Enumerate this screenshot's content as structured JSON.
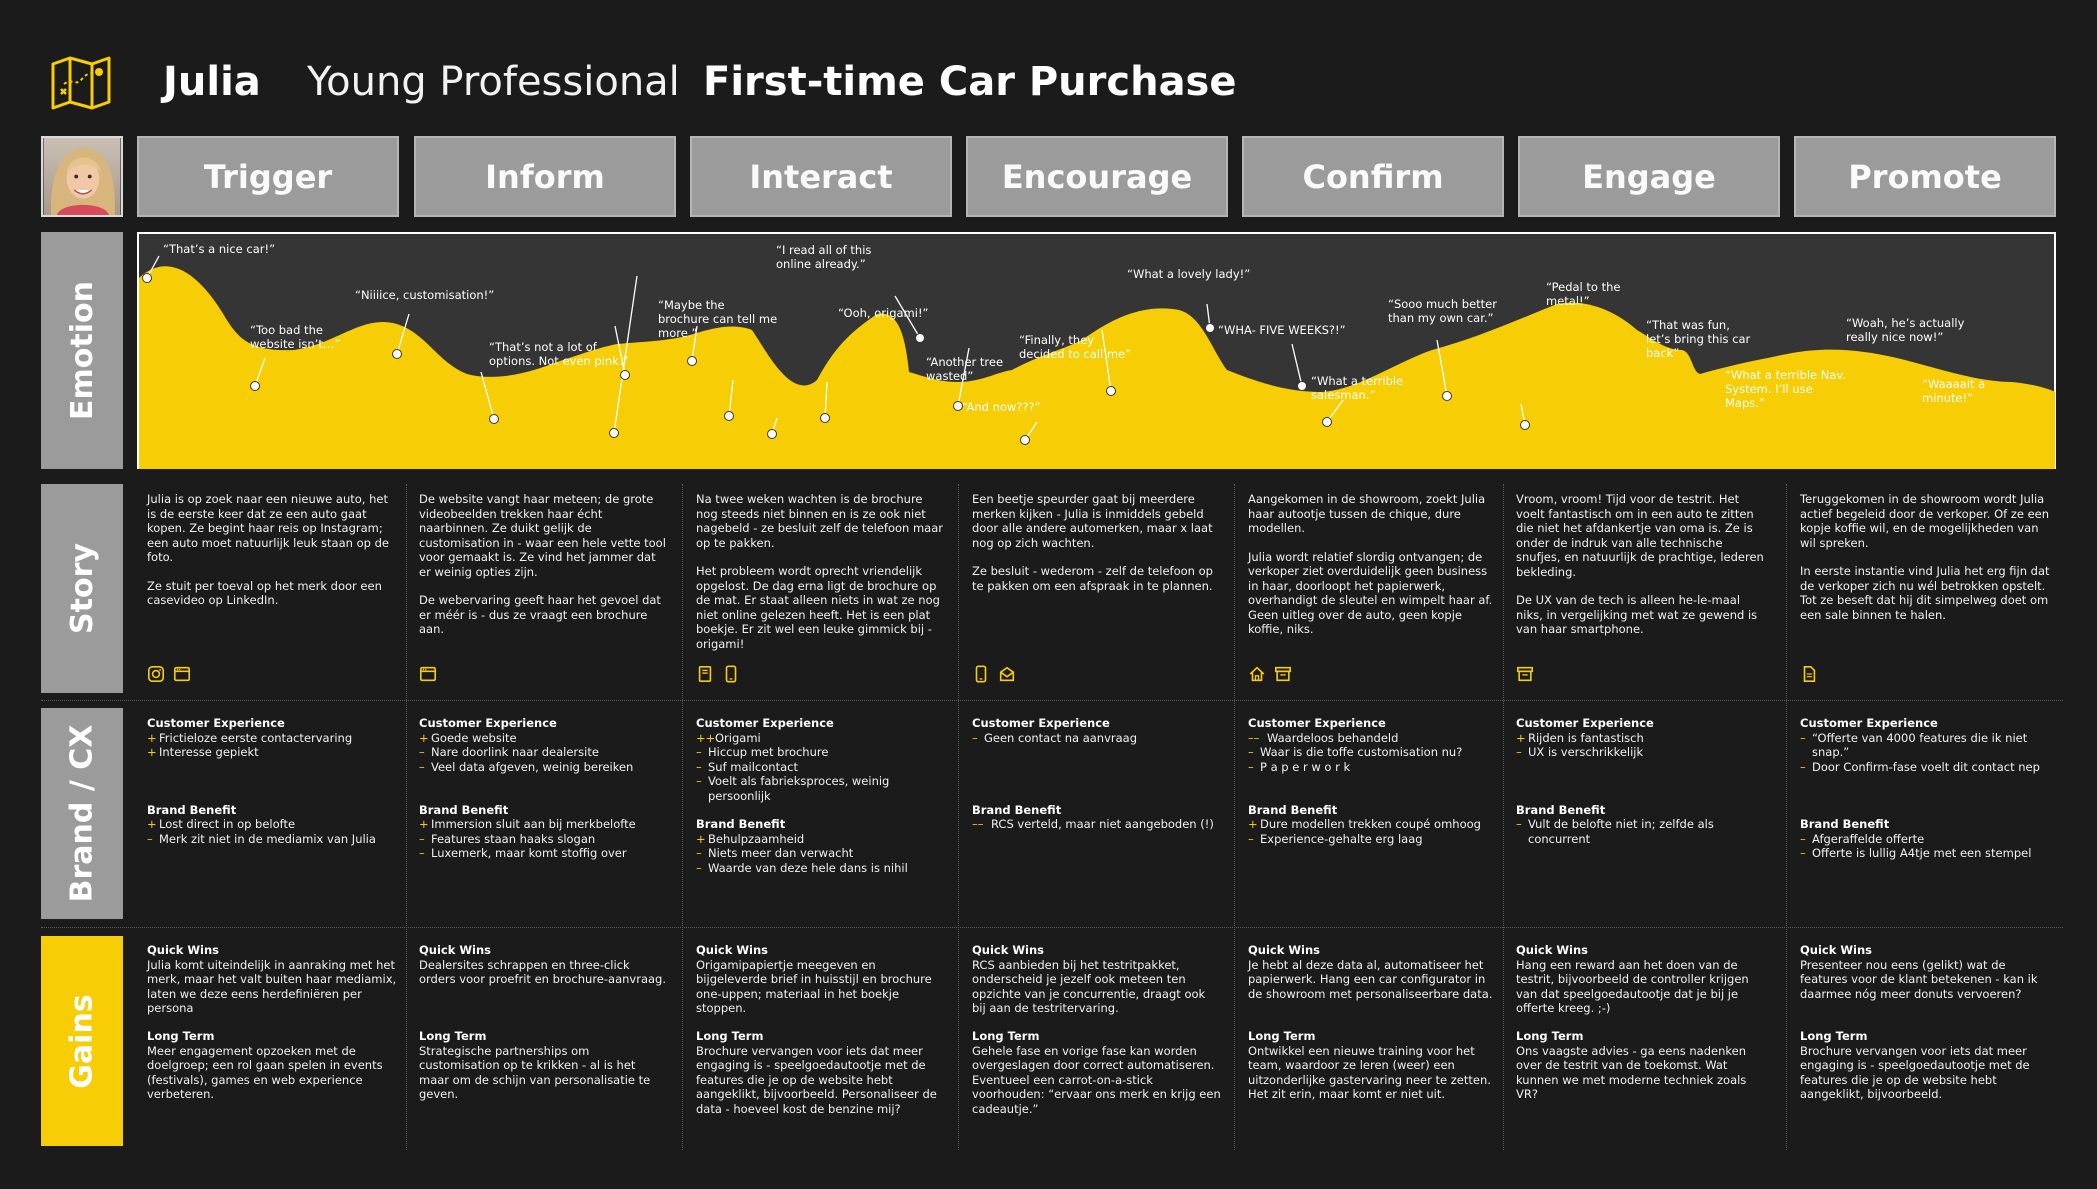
{
  "header": {
    "name": "Julia",
    "role": "Young Professional",
    "title": "First-time Car Purchase"
  },
  "phases": [
    "Trigger",
    "Inform",
    "Interact",
    "Encourage",
    "Confirm",
    "Engage",
    "Promote"
  ],
  "row_labels": {
    "emotion": "Emotion",
    "story": "Story",
    "brand": "Brand / CX",
    "gains": "Gains"
  },
  "colors": {
    "accent": "#f7cd05",
    "background": "#1b1b1b",
    "phase_box": "#9b9b9b",
    "chart_bg": "#353535"
  },
  "emotion_quotes": [
    {
      "text": "“That’s a nice car!”"
    },
    {
      "text": "“Too bad the website isn’t…”"
    },
    {
      "text": "“Niiiice, customisation!”"
    },
    {
      "text": "“That’s not a lot of options. Not even pink.”"
    },
    {
      "text": "“Maybe the brochure can tell me more.”"
    },
    {
      "text": "“I read all of this online already.”"
    },
    {
      "text": "“Ooh, origami!”"
    },
    {
      "text": "“Another tree wasted”"
    },
    {
      "text": "“And now???”"
    },
    {
      "text": "“Finally, they decided to call me”"
    },
    {
      "text": "“What a lovely lady!”"
    },
    {
      "text": "“WHA- FIVE WEEKS?!”"
    },
    {
      "text": "“What a terrible salesman.”"
    },
    {
      "text": "“Sooo much better than my own car.”"
    },
    {
      "text": "“Pedal to the metal!”"
    },
    {
      "text": "“That was fun, let’s bring this car back”"
    },
    {
      "text": "“What a terrible Nav. System. I’ll use Maps.”"
    },
    {
      "text": "“Woah, he’s actually really nice now!”"
    },
    {
      "text": "“Waaaait a minute!”"
    }
  ],
  "columns": [
    {
      "story": [
        "Julia is op zoek naar een nieuwe auto, het is de eerste keer dat ze een auto gaat kopen. Ze begint haar reis op Instagram; een auto moet natuurlijk leuk staan op de foto.",
        "Ze stuit per toeval op het merk door een casevideo op LinkedIn."
      ],
      "channels": [
        "instagram-icon",
        "website-icon"
      ],
      "cx_heading": "Customer Experience",
      "cx": [
        {
          "m": "+",
          "t": "Frictieloze eerste contactervaring"
        },
        {
          "m": "+",
          "t": "Interesse gepiekt"
        }
      ],
      "bb_heading": "Brand Benefit",
      "bb": [
        {
          "m": "+",
          "t": "Lost direct in op belofte"
        },
        {
          "m": "–",
          "t": "Merk zit niet in de mediamix van Julia"
        }
      ],
      "qw_heading": "Quick Wins",
      "qw": "Julia komt uiteindelijk in aanraking met het merk, maar het valt buiten haar mediamix, laten we deze eens herdefiniëren per persona",
      "lt_heading": "Long Term",
      "lt": "Meer engagement opzoeken met de doelgroep; een rol gaan spelen in events (festivals), games en web experience verbeteren."
    },
    {
      "story": [
        "De website vangt haar meteen; de grote videobeelden trekken haar écht naarbinnen. Ze duikt gelijk de customisation in - waar een hele vette tool voor gemaakt is. Ze vind het jammer dat er weinig opties zijn.",
        "De webervaring geeft haar het gevoel dat er méér is - dus ze vraagt een brochure aan."
      ],
      "channels": [
        "website-icon"
      ],
      "cx_heading": "Customer Experience",
      "cx": [
        {
          "m": "+",
          "t": "Goede website"
        },
        {
          "m": "–",
          "t": "Nare doorlink naar dealersite"
        },
        {
          "m": "–",
          "t": "Veel data afgeven, weinig bereiken"
        }
      ],
      "bb_heading": "Brand Benefit",
      "bb": [
        {
          "m": "+",
          "t": "Immersion sluit aan bij merkbelofte"
        },
        {
          "m": "–",
          "t": "Features staan haaks slogan"
        },
        {
          "m": "–",
          "t": "Luxemerk, maar komt stoffig over"
        }
      ],
      "qw_heading": "Quick Wins",
      "qw": "Dealersites schrappen en three-click orders voor proefrit en brochure-aanvraag.",
      "lt_heading": "Long Term",
      "lt": "Strategische partnerships om customisation op te krikken - al is het maar om de schijn van personalisatie te geven."
    },
    {
      "story": [
        "Na twee weken wachten is de brochure nog steeds niet binnen en is ze ook niet nagebeld - ze besluit zelf de telefoon maar op te pakken.",
        "Het probleem wordt oprecht vriendelijk opgelost. De dag erna ligt de brochure op de mat. Er staat alleen niets in wat ze nog niet online gelezen heeft. Het is een plat boekje. Er zit wel een leuke gimmick bij - origami!"
      ],
      "channels": [
        "brochure-icon",
        "phone-icon"
      ],
      "cx_heading": "Customer Experience",
      "cx": [
        {
          "m": "++",
          "t": "Origami"
        },
        {
          "m": "–",
          "t": "Hiccup met brochure"
        },
        {
          "m": "–",
          "t": "Suf mailcontact"
        },
        {
          "m": "–",
          "t": "Voelt als fabrieksproces, weinig persoonlijk"
        }
      ],
      "bb_heading": "Brand Benefit",
      "bb": [
        {
          "m": "+",
          "t": "Behulpzaamheid"
        },
        {
          "m": "–",
          "t": "Niets meer dan verwacht"
        },
        {
          "m": "–",
          "t": "Waarde van deze hele dans is nihil"
        }
      ],
      "qw_heading": "Quick Wins",
      "qw": "Origamipapiertje meegeven en bijgeleverde brief in huisstijl en brochure one-uppen; materiaal in het boekje stoppen.",
      "lt_heading": "Long Term",
      "lt": "Brochure vervangen voor iets dat meer engaging is - speelgoedautootje met de features die je op de website hebt aangeklikt, bijvoorbeeld. Personaliseer de data - hoeveel kost de benzine mij?"
    },
    {
      "story": [
        "Een beetje speurder gaat bij meerdere merken kijken - Julia is inmiddels gebeld door alle andere automerken, maar x laat nog op zich wachten.",
        "Ze besluit - wederom - zelf de telefoon op te pakken om een afspraak in te plannen."
      ],
      "channels": [
        "phone-icon",
        "mail-icon"
      ],
      "cx_heading": "Customer Experience",
      "cx": [
        {
          "m": "–",
          "t": "Geen contact na aanvraag"
        }
      ],
      "bb_heading": "Brand Benefit",
      "bb": [
        {
          "m": "––",
          "t": "RCS verteld, maar niet aangeboden (!)"
        }
      ],
      "qw_heading": "Quick Wins",
      "qw": "RCS aanbieden bij het testritpakket, onderscheid je jezelf ook meteen ten opzichte van je concurrentie, draagt ook bij aan de testritervaring.",
      "lt_heading": "Long Term",
      "lt": "Gehele fase en vorige fase kan worden overgeslagen door correct automatiseren. Eventueel een carrot-on-a-stick voorhouden: “ervaar ons merk en krijg een cadeautje.”"
    },
    {
      "story": [
        "Aangekomen in de showroom, zoekt Julia haar autootje tussen de chique, dure modellen.",
        "Julia wordt relatief slordig ontvangen; de verkoper ziet overduidelijk geen business in haar, doorloopt het papierwerk, overhandigt de sleutel en wimpelt haar af. Geen uitleg over de auto, geen kopje koffie, niks."
      ],
      "channels": [
        "home-icon",
        "showroom-icon"
      ],
      "cx_heading": "Customer Experience",
      "cx": [
        {
          "m": "––",
          "t": "Waardeloos behandeld"
        },
        {
          "m": "–",
          "t": "Waar is die toffe customisation nu?"
        },
        {
          "m": "–",
          "t": "P a p e r w o r k"
        }
      ],
      "bb_heading": "Brand Benefit",
      "bb": [
        {
          "m": "+",
          "t": "Dure modellen trekken coupé omhoog"
        },
        {
          "m": "–",
          "t": "Experience-gehalte erg laag"
        }
      ],
      "qw_heading": "Quick Wins",
      "qw": "Je hebt al deze data al, automatiseer het papierwerk. Hang een car configurator in de showroom met personaliseerbare data.",
      "lt_heading": "Long Term",
      "lt": "Ontwikkel een nieuwe training voor het team, waardoor ze leren (weer) een uitzonderlijke gastervaring neer te zetten. Het zit erin, maar komt er niet uit."
    },
    {
      "story": [
        "Vroom, vroom! Tijd voor de testrit. Het voelt fantastisch om in een auto te zitten die niet het afdankertje van oma is. Ze is onder de indruk van alle technische snufjes, en natuurlijk de prachtige, lederen bekleding.",
        "De UX van de tech is alleen he-le-maal niks, in vergelijking met wat ze gewend is van haar smartphone."
      ],
      "channels": [
        "showroom-icon"
      ],
      "cx_heading": "Customer Experience",
      "cx": [
        {
          "m": "+",
          "t": "Rijden is fantastisch"
        },
        {
          "m": "–",
          "t": "UX is verschrikkelijk"
        }
      ],
      "bb_heading": "Brand Benefit",
      "bb": [
        {
          "m": "–",
          "t": "Vult de belofte niet in; zelfde als concurrent"
        }
      ],
      "qw_heading": "Quick Wins",
      "qw": "Hang een reward aan het doen van de testrit, bijvoorbeeld de controller krijgen van dat speelgoedautootje dat je bij je offerte kreeg. ;-)",
      "lt_heading": "Long Term",
      "lt": "Ons vaagste advies - ga eens nadenken over de testrit van de toekomst. Wat kunnen we met moderne techniek zoals VR?"
    },
    {
      "story": [
        "Teruggekomen in de showroom wordt Julia actief begeleid door de verkoper. Of ze een kopje koffie wil, en de mogelijkheden van wil spreken.",
        "In eerste instantie vind Julia het erg fijn dat de verkoper zich nu wél betrokken opstelt. Tot ze beseft dat hij dit simpelweg doet om een sale binnen te halen."
      ],
      "channels": [
        "document-icon"
      ],
      "cx_heading": "Customer Experience",
      "cx": [
        {
          "m": "–",
          "t": "“Offerte van 4000 features die ik niet snap.”"
        },
        {
          "m": "–",
          "t": "Door Confirm-fase voelt dit contact nep"
        }
      ],
      "bb_heading": "Brand Benefit",
      "bb": [
        {
          "m": "–",
          "t": "Afgeraffelde offerte"
        },
        {
          "m": "–",
          "t": "Offerte is lullig A4tje met een stempel"
        }
      ],
      "qw_heading": "Quick Wins",
      "qw": "Presenteer nou eens (gelikt) wat de features voor de klant betekenen - kan ik daarmee nóg meer donuts vervoeren?",
      "lt_heading": "Long Term",
      "lt": "Brochure vervangen voor iets dat meer engaging is - speelgoedautootje met de features die je op de website hebt aangeklikt, bijvoorbeeld."
    }
  ]
}
